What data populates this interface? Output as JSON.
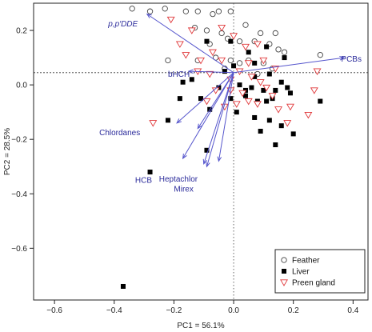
{
  "chart_data": {
    "type": "scatter",
    "title": "",
    "xlabel": "PC1 = 56.1%",
    "ylabel": "PC2 = 28.5%",
    "xlim": [
      -0.67,
      0.45
    ],
    "ylim": [
      -0.79,
      0.3
    ],
    "x_ticks": [
      -0.6,
      -0.4,
      -0.2,
      0.0,
      0.2,
      0.4
    ],
    "y_ticks": [
      0.2,
      0.0,
      -0.2,
      -0.4,
      -0.6
    ],
    "x_tick_labels": [
      "−0.6",
      "−0.4",
      "−0.2",
      "0.0",
      "0.2",
      "0.4"
    ],
    "y_tick_labels": [
      "0.2",
      "0.0",
      "−0.2",
      "−0.4",
      "−0.6"
    ],
    "grid": false,
    "reference_lines": {
      "horizontal_y": 0.045,
      "vertical_x": 0.0
    },
    "legend_position": "bottom-right",
    "series": [
      {
        "name": "Feather",
        "marker": "circle-open",
        "color": "#444444",
        "points": [
          [
            -0.34,
            0.28
          ],
          [
            -0.28,
            0.27
          ],
          [
            -0.23,
            0.28
          ],
          [
            -0.16,
            0.27
          ],
          [
            -0.12,
            0.27
          ],
          [
            -0.07,
            0.26
          ],
          [
            -0.05,
            0.27
          ],
          [
            -0.01,
            0.27
          ],
          [
            -0.13,
            0.21
          ],
          [
            -0.09,
            0.2
          ],
          [
            -0.04,
            0.19
          ],
          [
            0.04,
            0.22
          ],
          [
            0.09,
            0.19
          ],
          [
            0.14,
            0.19
          ],
          [
            -0.02,
            0.17
          ],
          [
            0.02,
            0.16
          ],
          [
            0.07,
            0.16
          ],
          [
            0.12,
            0.15
          ],
          [
            0.15,
            0.13
          ],
          [
            0.17,
            0.12
          ],
          [
            0.29,
            0.11
          ],
          [
            -0.22,
            0.09
          ],
          [
            -0.12,
            0.09
          ],
          [
            -0.06,
            0.1
          ],
          [
            -0.01,
            0.09
          ],
          [
            0.05,
            0.09
          ],
          [
            0.1,
            0.08
          ],
          [
            0.13,
            0.06
          ],
          [
            -0.03,
            0.06
          ],
          [
            0.08,
            0.04
          ],
          [
            0.02,
            0.08
          ],
          [
            -0.08,
            0.15
          ]
        ]
      },
      {
        "name": "Liver",
        "marker": "square-filled",
        "color": "#000000",
        "points": [
          [
            -0.37,
            -0.74
          ],
          [
            -0.28,
            -0.32
          ],
          [
            -0.09,
            0.16
          ],
          [
            -0.01,
            0.16
          ],
          [
            0.05,
            0.12
          ],
          [
            0.11,
            0.14
          ],
          [
            0.07,
            0.08
          ],
          [
            0.17,
            0.1
          ],
          [
            -0.03,
            0.05
          ],
          [
            0.0,
            0.07
          ],
          [
            0.07,
            0.03
          ],
          [
            0.12,
            0.04
          ],
          [
            0.16,
            0.01
          ],
          [
            0.18,
            -0.01
          ],
          [
            -0.14,
            0.02
          ],
          [
            -0.17,
            0.01
          ],
          [
            0.02,
            0.0
          ],
          [
            0.06,
            -0.01
          ],
          [
            0.1,
            -0.02
          ],
          [
            0.14,
            -0.02
          ],
          [
            0.19,
            -0.03
          ],
          [
            -0.18,
            -0.05
          ],
          [
            -0.11,
            -0.05
          ],
          [
            -0.01,
            -0.05
          ],
          [
            0.04,
            -0.04
          ],
          [
            0.08,
            -0.06
          ],
          [
            0.11,
            -0.06
          ],
          [
            0.13,
            -0.05
          ],
          [
            0.29,
            -0.06
          ],
          [
            -0.08,
            -0.09
          ],
          [
            0.01,
            -0.1
          ],
          [
            0.07,
            -0.12
          ],
          [
            0.12,
            -0.13
          ],
          [
            0.16,
            -0.15
          ],
          [
            0.2,
            -0.18
          ],
          [
            0.09,
            -0.17
          ],
          [
            -0.22,
            -0.13
          ],
          [
            -0.09,
            -0.24
          ],
          [
            0.14,
            -0.22
          ],
          [
            0.04,
            -0.02
          ],
          [
            -0.05,
            -0.01
          ]
        ]
      },
      {
        "name": "Preen gland",
        "marker": "triangle-down-open",
        "color": "#e0383a",
        "points": [
          [
            -0.21,
            0.24
          ],
          [
            -0.14,
            0.2
          ],
          [
            -0.18,
            0.15
          ],
          [
            -0.04,
            0.21
          ],
          [
            0.0,
            0.18
          ],
          [
            0.04,
            0.14
          ],
          [
            0.08,
            0.15
          ],
          [
            -0.07,
            0.12
          ],
          [
            -0.11,
            0.09
          ],
          [
            -0.04,
            0.09
          ],
          [
            -0.16,
            0.11
          ],
          [
            0.05,
            0.08
          ],
          [
            0.1,
            0.09
          ],
          [
            0.14,
            0.06
          ],
          [
            0.28,
            0.05
          ],
          [
            -0.12,
            0.05
          ],
          [
            -0.08,
            0.04
          ],
          [
            0.06,
            0.03
          ],
          [
            0.02,
            0.05
          ],
          [
            -0.01,
            0.02
          ],
          [
            0.09,
            0.01
          ],
          [
            0.11,
            -0.01
          ],
          [
            -0.06,
            -0.02
          ],
          [
            0.03,
            -0.03
          ],
          [
            0.13,
            -0.04
          ],
          [
            0.08,
            -0.07
          ],
          [
            0.15,
            -0.09
          ],
          [
            0.19,
            -0.08
          ],
          [
            -0.09,
            -0.06
          ],
          [
            0.01,
            -0.07
          ],
          [
            0.05,
            -0.06
          ],
          [
            -0.27,
            -0.14
          ],
          [
            -0.03,
            -0.08
          ],
          [
            0.18,
            -0.14
          ],
          [
            0.25,
            -0.11
          ],
          [
            0.27,
            -0.02
          ],
          [
            -0.01,
            -0.02
          ]
        ]
      }
    ],
    "loadings": [
      {
        "label": "p,p′DDE",
        "end": [
          -0.29,
          0.26
        ]
      },
      {
        "label": "PCBs",
        "end": [
          0.37,
          0.1
        ]
      },
      {
        "label": "bHCH",
        "end": [
          -0.15,
          0.05
        ]
      },
      {
        "label": "Chlordanes",
        "end": [
          -0.19,
          -0.14
        ]
      },
      {
        "label": "HCB",
        "end": [
          -0.17,
          -0.27
        ]
      },
      {
        "label": "Heptachlor",
        "end": [
          -0.09,
          -0.3
        ]
      },
      {
        "label": "Mirex",
        "end": [
          -0.1,
          -0.29
        ]
      },
      {
        "label": "",
        "end": [
          -0.12,
          -0.16
        ]
      },
      {
        "label": "",
        "end": [
          -0.05,
          -0.28
        ]
      }
    ],
    "loading_labels": [
      {
        "text": "p,p′DDE",
        "x": -0.42,
        "y": 0.215
      },
      {
        "text": "PCBs",
        "x": 0.36,
        "y": 0.085
      },
      {
        "text": "bHCH",
        "x": -0.22,
        "y": 0.03
      },
      {
        "text": "Chlordanes",
        "x": -0.45,
        "y": -0.185
      },
      {
        "text": "HCB",
        "x": -0.33,
        "y": -0.36
      },
      {
        "text": "Heptachlor",
        "x": -0.25,
        "y": -0.355
      },
      {
        "text": "Mirex",
        "x": -0.2,
        "y": -0.392
      }
    ],
    "colors": {
      "axes": "#222222",
      "loading_arrow": "#5555cc",
      "loading_text": "#2a2a9a"
    }
  }
}
